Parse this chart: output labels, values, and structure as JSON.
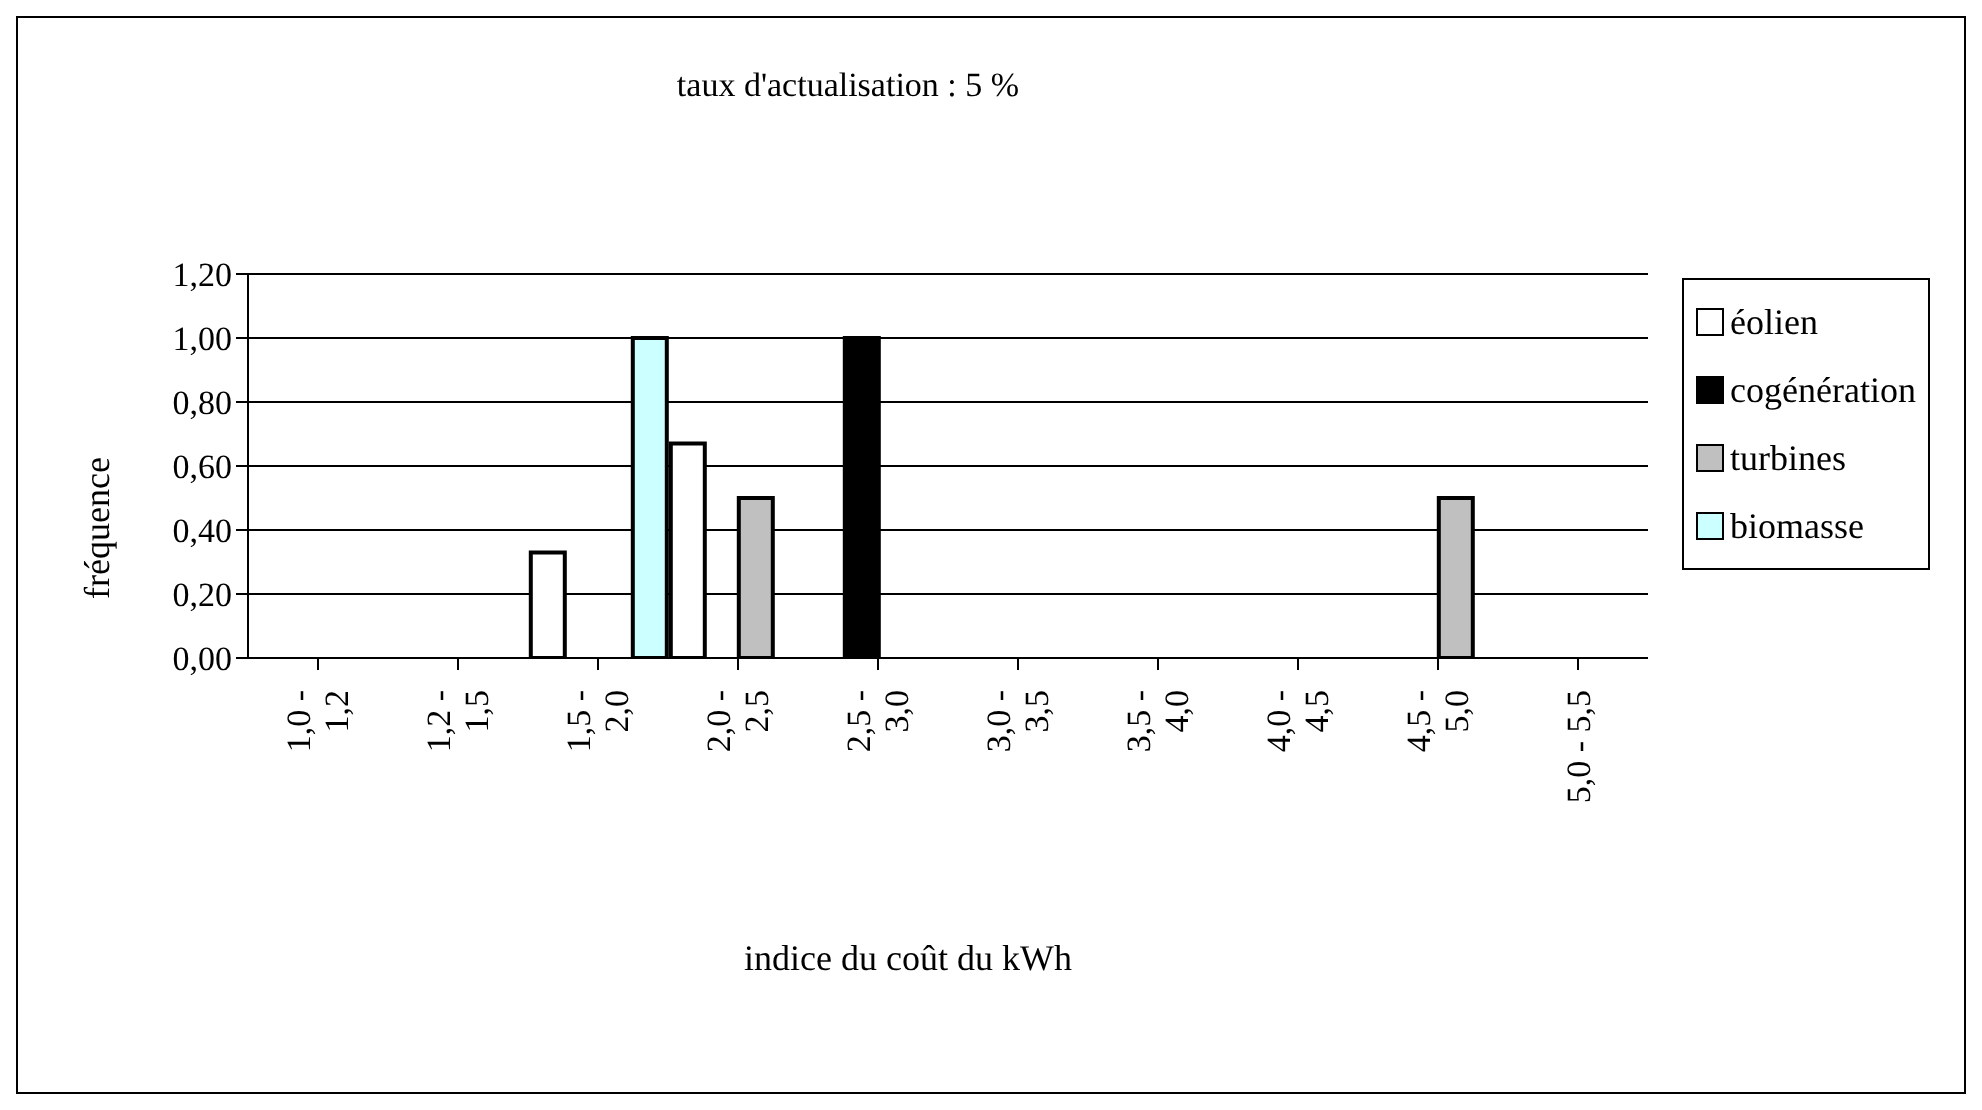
{
  "chart_data": {
    "type": "bar",
    "title": "taux d'actualisation : 5 %",
    "xlabel": "indice du coût du kWh",
    "ylabel": "fréquence",
    "categories": [
      "1,0 -\n1,2",
      "1,2 -\n1,5",
      "1,5 -\n2,0",
      "2,0 -\n2,5",
      "2,5 -\n3,0",
      "3,0 -\n3,5",
      "3,5 -\n4,0",
      "4,0 -\n4,5",
      "4,5 -\n5,0",
      "5,0 - 5,5"
    ],
    "series": [
      {
        "name": "éolien",
        "color": "#ffffff",
        "values": [
          0,
          0,
          0.33,
          0.67,
          0,
          0,
          0,
          0,
          0,
          0
        ]
      },
      {
        "name": "cogénération",
        "color": "#000000",
        "values": [
          0,
          0,
          0,
          0,
          1,
          0,
          0,
          0,
          0,
          0
        ]
      },
      {
        "name": "turbines",
        "color": "#c0c0c0",
        "values": [
          0,
          0,
          0,
          0.5,
          0,
          0,
          0,
          0,
          0.5,
          0
        ]
      },
      {
        "name": "biomasse",
        "color": "#ccffff",
        "values": [
          0,
          0,
          1,
          0,
          0,
          0,
          0,
          0,
          0,
          0
        ]
      }
    ],
    "ylim": [
      0,
      1.2
    ],
    "yticks": [
      {
        "value": 0,
        "label": "0,00"
      },
      {
        "value": 0.2,
        "label": "0,20"
      },
      {
        "value": 0.4,
        "label": "0,40"
      },
      {
        "value": 0.6,
        "label": "0,60"
      },
      {
        "value": 0.8,
        "label": "0,80"
      },
      {
        "value": 1,
        "label": "1,00"
      },
      {
        "value": 1.2,
        "label": "1,20"
      }
    ],
    "grid": "y",
    "legend": "right"
  }
}
